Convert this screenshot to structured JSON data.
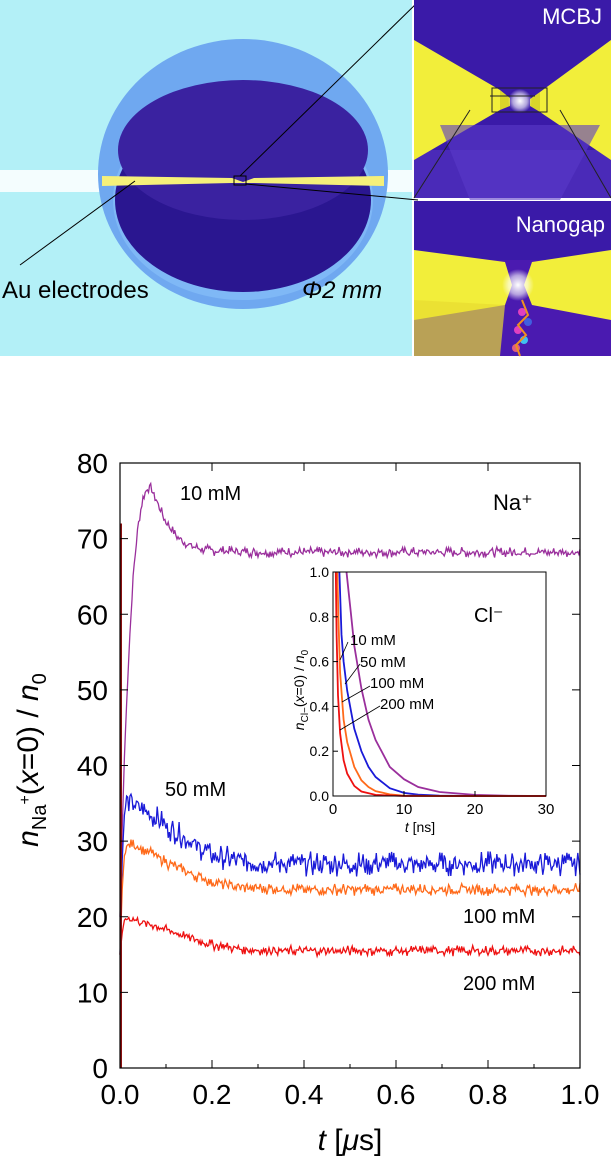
{
  "illustration": {
    "electrodes_label": "Au electrodes",
    "diameter_label": "Φ2 mm",
    "mcbj_label": "MCBJ",
    "nanogap_label": "Nanogap",
    "colors": {
      "background": "#b3f0f7",
      "outer_disc": "#6fa8f0",
      "inner_disc": "#2a1690",
      "electrode": "#f5f07a",
      "panel": "#3a1aa8",
      "gold": "#f2ee3a"
    }
  },
  "chart_data": {
    "type": "line",
    "title": "",
    "xlabel": "t [μs]",
    "ylabel": "n_Na+(x=0) / n_0",
    "xlim": [
      0,
      1.0
    ],
    "ylim": [
      0,
      80
    ],
    "xticks": [
      0.0,
      0.2,
      0.4,
      0.6,
      0.8,
      1.0
    ],
    "xtick_labels": [
      "0.0",
      "0.2",
      "0.4",
      "0.6",
      "0.8",
      "1.0"
    ],
    "yticks": [
      0,
      10,
      20,
      30,
      40,
      50,
      60,
      70,
      80
    ],
    "ytick_labels": [
      "0",
      "10",
      "20",
      "30",
      "40",
      "50",
      "60",
      "70",
      "80"
    ],
    "ion_label": "Na⁺",
    "series": [
      {
        "name": "10 mM",
        "color": "#9a2f9c",
        "noise": 0.5,
        "x": [
          0,
          0.005,
          0.01,
          0.02,
          0.03,
          0.04,
          0.05,
          0.06,
          0.065,
          0.07,
          0.08,
          0.09,
          0.1,
          0.12,
          0.14,
          0.16,
          0.18,
          0.2,
          0.25,
          0.3,
          0.4,
          0.5,
          0.6,
          0.7,
          0.8,
          0.9,
          1.0
        ],
        "y": [
          20,
          32,
          42,
          56,
          66,
          72,
          75.5,
          76.7,
          76.8,
          76.3,
          75,
          73.5,
          72.2,
          70.5,
          69.5,
          68.9,
          68.6,
          68.4,
          68.3,
          68.2,
          68.2,
          68.2,
          68.2,
          68.2,
          68.2,
          68.2,
          68.2
        ]
      },
      {
        "name": "50 mM",
        "color": "#1a1ad8",
        "noise": 1.2,
        "x": [
          0,
          0.005,
          0.01,
          0.015,
          0.03,
          0.05,
          0.08,
          0.1,
          0.15,
          0.2,
          0.25,
          0.3,
          0.4,
          0.5,
          0.6,
          0.7,
          0.8,
          0.9,
          1.0
        ],
        "y": [
          15,
          28,
          34,
          35.5,
          35,
          34,
          33,
          32,
          30,
          28.2,
          27.5,
          27.1,
          27,
          27,
          27,
          27,
          27,
          27,
          27
        ]
      },
      {
        "name": "100 mM",
        "color": "#ff6a1a",
        "noise": 0.6,
        "x": [
          0,
          0.005,
          0.01,
          0.015,
          0.03,
          0.05,
          0.08,
          0.1,
          0.15,
          0.2,
          0.25,
          0.3,
          0.4,
          0.5,
          0.6,
          0.7,
          0.8,
          0.9,
          1.0
        ],
        "y": [
          15,
          24,
          28.5,
          29.3,
          29.5,
          29,
          28,
          27.2,
          25.8,
          24.6,
          24,
          23.8,
          23.6,
          23.6,
          23.6,
          23.6,
          23.6,
          23.6,
          23.6
        ]
      },
      {
        "name": "200 mM",
        "color": "#ee1111",
        "noise": 0.5,
        "x": [
          0,
          0.005,
          0.01,
          0.015,
          0.03,
          0.05,
          0.08,
          0.1,
          0.15,
          0.2,
          0.25,
          0.3,
          0.4,
          0.5,
          0.6,
          0.7,
          0.8,
          0.9,
          1.0
        ],
        "y": [
          15,
          18,
          19.7,
          19.8,
          19.6,
          19.2,
          18.8,
          18.3,
          17.3,
          16.3,
          15.8,
          15.6,
          15.5,
          15.5,
          15.5,
          15.5,
          15.5,
          15.5,
          15.5
        ]
      }
    ],
    "initial_spike": {
      "x": [
        0.0,
        0.0
      ],
      "y": [
        0,
        72
      ],
      "color": "#8a1010"
    },
    "inset": {
      "type": "line",
      "xlabel": "t [ns]",
      "ylabel": "n_Cl−(x=0) / n_0",
      "xlim": [
        0,
        30
      ],
      "ylim": [
        0,
        1.0
      ],
      "xticks": [
        0,
        10,
        20,
        30
      ],
      "xtick_labels": [
        "0",
        "10",
        "20",
        "30"
      ],
      "yticks": [
        0.0,
        0.2,
        0.4,
        0.6,
        0.8,
        1.0
      ],
      "ytick_labels": [
        "0.0",
        "0.2",
        "0.4",
        "0.6",
        "0.8",
        "1.0"
      ],
      "ion_label": "Cl⁻",
      "series": [
        {
          "name": "10 mM",
          "color": "#9a2f9c",
          "x": [
            1.9,
            2.5,
            3,
            4,
            5,
            6,
            8,
            10,
            12,
            15,
            20,
            25,
            30
          ],
          "y": [
            1.0,
            0.82,
            0.67,
            0.48,
            0.34,
            0.25,
            0.13,
            0.075,
            0.04,
            0.018,
            0.005,
            0.001,
            0.0
          ]
        },
        {
          "name": "50 mM",
          "color": "#1a1ad8",
          "x": [
            0.9,
            1.2,
            1.5,
            2,
            3,
            4,
            5,
            6,
            8,
            10,
            12,
            15,
            20,
            30
          ],
          "y": [
            1.0,
            0.72,
            0.6,
            0.47,
            0.3,
            0.2,
            0.13,
            0.085,
            0.035,
            0.014,
            0.006,
            0.002,
            0.0,
            0.0
          ]
        },
        {
          "name": "100 mM",
          "color": "#ff6a1a",
          "x": [
            0.6,
            0.8,
            1,
            1.5,
            2,
            3,
            4,
            5,
            6,
            8,
            10,
            15,
            30
          ],
          "y": [
            1.0,
            0.75,
            0.55,
            0.34,
            0.24,
            0.13,
            0.07,
            0.04,
            0.022,
            0.007,
            0.002,
            0.0,
            0.0
          ]
        },
        {
          "name": "200 mM",
          "color": "#ee1111",
          "x": [
            0.4,
            0.5,
            0.7,
            1,
            1.5,
            2,
            3,
            4,
            6,
            10,
            30
          ],
          "y": [
            1.0,
            0.72,
            0.45,
            0.28,
            0.16,
            0.1,
            0.045,
            0.02,
            0.005,
            0.0,
            0.0
          ]
        }
      ]
    }
  }
}
